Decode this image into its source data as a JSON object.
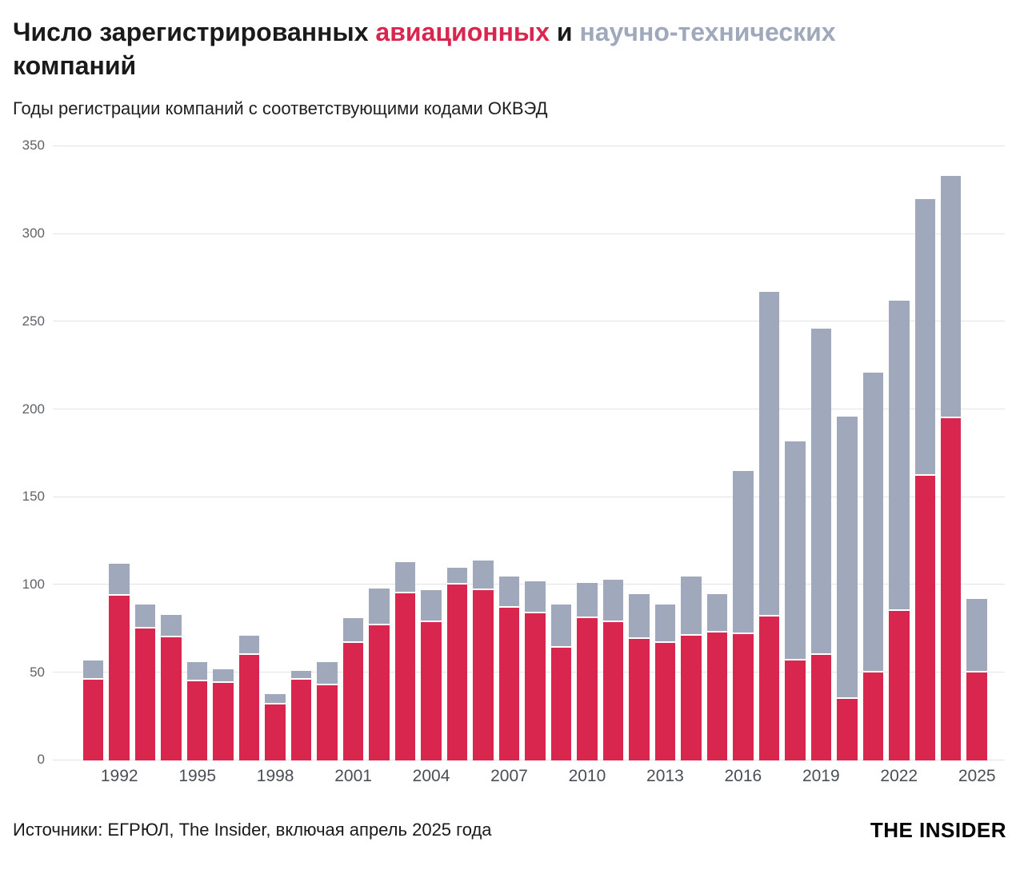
{
  "header": {
    "title_parts": [
      {
        "text": "Число зарегистрированных ",
        "color": "#1a1a1a"
      },
      {
        "text": "авиационных",
        "color": "#d9264f"
      },
      {
        "text": " и ",
        "color": "#1a1a1a"
      },
      {
        "text": "научно-технических",
        "color": "#9fa9bb"
      },
      {
        "break": true
      },
      {
        "text": "компаний",
        "color": "#1a1a1a"
      }
    ],
    "subtitle": "Годы регистрации компаний с соответствующими кодами ОКВЭД"
  },
  "chart_data": {
    "type": "bar",
    "stacked": true,
    "title": "Число зарегистрированных авиационных и научно-технических компаний",
    "subtitle": "Годы регистрации компаний с соответствующими кодами ОКВЭД",
    "ylim": [
      0,
      350
    ],
    "yticks": [
      0,
      50,
      100,
      150,
      200,
      250,
      300,
      350
    ],
    "xticks": [
      1992,
      1995,
      1998,
      2001,
      2004,
      2007,
      2010,
      2013,
      2016,
      2019,
      2022,
      2025
    ],
    "years": [
      1991,
      1992,
      1993,
      1994,
      1995,
      1996,
      1997,
      1998,
      1999,
      2000,
      2001,
      2002,
      2003,
      2004,
      2005,
      2006,
      2007,
      2008,
      2009,
      2010,
      2011,
      2012,
      2013,
      2014,
      2015,
      2016,
      2017,
      2018,
      2019,
      2020,
      2021,
      2022,
      2023,
      2024,
      2025
    ],
    "series": [
      {
        "name": "авиационные",
        "color": "#d9264f",
        "values": [
          46,
          94,
          75,
          70,
          45,
          44,
          60,
          32,
          46,
          43,
          67,
          77,
          95,
          79,
          100,
          97,
          87,
          84,
          64,
          81,
          79,
          69,
          67,
          71,
          73,
          72,
          82,
          57,
          60,
          35,
          50,
          85,
          162,
          195,
          50
        ]
      },
      {
        "name": "научно-технические",
        "color": "#9fa9bb",
        "values": [
          10,
          17,
          13,
          12,
          10,
          7,
          10,
          5,
          4,
          12,
          13,
          20,
          17,
          17,
          9,
          16,
          17,
          17,
          24,
          19,
          23,
          25,
          21,
          33,
          21,
          92,
          184,
          124,
          185,
          160,
          170,
          176,
          157,
          137,
          41
        ]
      }
    ],
    "totals": [
      56,
      111,
      88,
      82,
      55,
      51,
      70,
      37,
      50,
      55,
      80,
      97,
      112,
      96,
      109,
      113,
      104,
      101,
      88,
      100,
      102,
      94,
      88,
      104,
      94,
      164,
      266,
      181,
      245,
      195,
      220,
      261,
      319,
      332,
      91
    ],
    "legend_position": "none",
    "grid": true
  },
  "footer": {
    "source": "Источники: ЕГРЮЛ, The Insider, включая апрель 2025 года",
    "logo": "THE INSIDER"
  }
}
